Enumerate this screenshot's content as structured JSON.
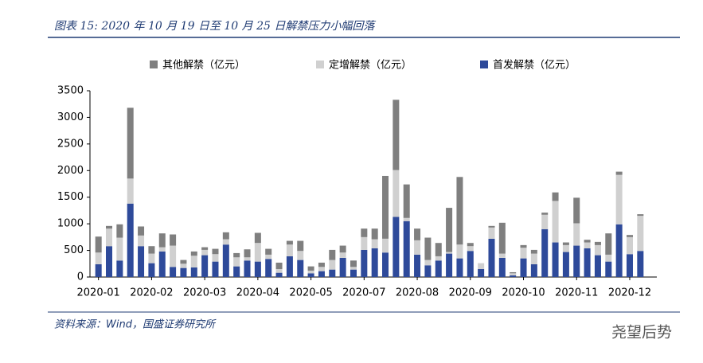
{
  "chart_data": {
    "type": "stacked_bar",
    "title": "图表 15: 2020 年 10 月 19 日至 10 月 25 日解禁压力小幅回落",
    "source": "资料来源：Wind，国盛证券研究所",
    "watermark": "尧望后势",
    "categories": [
      "2020-01",
      null,
      null,
      null,
      null,
      "2020-02",
      null,
      null,
      null,
      null,
      "2020-03",
      null,
      null,
      null,
      null,
      "2020-04",
      null,
      null,
      null,
      null,
      "2020-05",
      null,
      null,
      null,
      null,
      "2020-07",
      null,
      null,
      null,
      null,
      "2020-08",
      null,
      null,
      null,
      null,
      "2020-09",
      null,
      null,
      null,
      null,
      "2020-10",
      null,
      null,
      null,
      null,
      "2020-11",
      null,
      null,
      null,
      null,
      "2020-12",
      null
    ],
    "series": [
      {
        "name": "首发解禁（亿元）",
        "color": "#2e4a9a",
        "values": [
          240,
          580,
          310,
          1380,
          580,
          260,
          480,
          190,
          170,
          180,
          410,
          290,
          610,
          200,
          310,
          290,
          340,
          80,
          390,
          320,
          70,
          110,
          140,
          360,
          140,
          510,
          540,
          460,
          1130,
          1050,
          420,
          220,
          310,
          440,
          350,
          490,
          150,
          720,
          360,
          30,
          350,
          240,
          900,
          650,
          470,
          590,
          540,
          410,
          290,
          990,
          430,
          490
        ]
      },
      {
        "name": "定增解禁（亿元）",
        "color": "#d0d0d0",
        "values": [
          220,
          330,
          430,
          470,
          200,
          180,
          80,
          400,
          80,
          220,
          100,
          140,
          100,
          170,
          60,
          350,
          80,
          70,
          220,
          170,
          50,
          80,
          180,
          100,
          50,
          240,
          170,
          260,
          880,
          60,
          270,
          100,
          80,
          30,
          260,
          90,
          110,
          210,
          80,
          40,
          200,
          200,
          270,
          780,
          130,
          420,
          110,
          190,
          130,
          930,
          320,
          660
        ]
      },
      {
        "name": "其他解禁（亿元）",
        "color": "#7f7f7f",
        "values": [
          300,
          50,
          250,
          1330,
          170,
          140,
          260,
          210,
          70,
          80,
          50,
          100,
          130,
          80,
          150,
          190,
          110,
          120,
          70,
          190,
          80,
          80,
          190,
          130,
          120,
          160,
          200,
          1180,
          1320,
          630,
          220,
          420,
          250,
          830,
          1270,
          60,
          0,
          30,
          580,
          20,
          50,
          70,
          40,
          160,
          50,
          480,
          50,
          60,
          400,
          60,
          40,
          30
        ]
      }
    ],
    "ylim": [
      0,
      3500
    ],
    "yticks": [
      0,
      500,
      1000,
      1500,
      2000,
      2500,
      3000,
      3500
    ],
    "grid": false
  }
}
